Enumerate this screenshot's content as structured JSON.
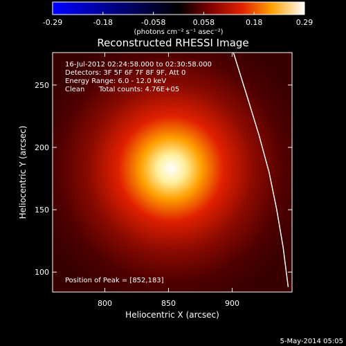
{
  "chart_data": {
    "type": "heatmap",
    "title": "Reconstructed RHESSI Image",
    "xlabel": "Heliocentric X (arcsec)",
    "ylabel": "Heliocentric Y (arcsec)",
    "xlim": [
      759,
      947
    ],
    "ylim": [
      84,
      276
    ],
    "x_ticks": [
      800,
      850,
      900
    ],
    "y_ticks": [
      100,
      150,
      200,
      250
    ],
    "colorbar": {
      "units": "(photons cm⁻² s⁻¹ asec⁻²)",
      "range": [
        -0.29,
        0.29
      ],
      "tick_labels": [
        "-0.29",
        "-0.18",
        "-0.058",
        "0.058",
        "0.18",
        "0.29"
      ],
      "stops": [
        {
          "v": 0.0,
          "color": "#0000ff"
        },
        {
          "v": 0.5,
          "color": "#000000"
        },
        {
          "v": 0.62,
          "color": "#7a0000"
        },
        {
          "v": 0.75,
          "color": "#e02000"
        },
        {
          "v": 0.87,
          "color": "#ffa000"
        },
        {
          "v": 1.0,
          "color": "#ffffff"
        }
      ]
    },
    "peak": {
      "x": 852,
      "y": 183
    },
    "limb_curve": [
      [
        901,
        276
      ],
      [
        912,
        240
      ],
      [
        921,
        210
      ],
      [
        929,
        180
      ],
      [
        935,
        150
      ],
      [
        940,
        120
      ],
      [
        944,
        88
      ]
    ],
    "annotations": {
      "time_range": "16-Jul-2012 02:24:58.000 to 02:30:58.000",
      "detectors": "Detectors: 3F 5F 6F 7F 8F 9F, Att 0",
      "energy": "Energy Range: 6.0 - 12.0 keV",
      "method": "Clean",
      "counts": "Total counts: 4.76E+05",
      "peak_text": "Position of Peak = [852,183]"
    }
  },
  "footer": {
    "date": "5-May-2014 05:05"
  }
}
